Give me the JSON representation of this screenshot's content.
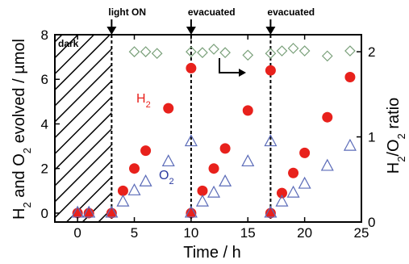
{
  "chart_data": {
    "type": "scatter",
    "xlabel": "Time / h",
    "ylabel_left": "H2 and O2 evolved / µmol",
    "ylabel_right": "H2/O2 ratio",
    "xlim": [
      -2,
      25
    ],
    "ylim_left": [
      -0.4,
      8
    ],
    "ylim_right": [
      0,
      2.2
    ],
    "xticks": [
      0,
      5,
      10,
      15,
      20,
      25
    ],
    "yticks_left": [
      0,
      2,
      4,
      6,
      8
    ],
    "yticks_right": [
      0,
      1,
      2
    ],
    "dark_label": "dark",
    "dark_region": [
      -2,
      3
    ],
    "events": [
      {
        "x": 3,
        "label": "light ON"
      },
      {
        "x": 10,
        "label": "evacuated"
      },
      {
        "x": 17,
        "label": "evacuated"
      }
    ],
    "series": [
      {
        "name": "H2",
        "marker": "filled-circle",
        "color": "#e8211c",
        "axis": "left",
        "points": [
          [
            0,
            0
          ],
          [
            1,
            0
          ],
          [
            3,
            0
          ],
          [
            4,
            1.0
          ],
          [
            5,
            2.0
          ],
          [
            6,
            2.8
          ],
          [
            8,
            4.7
          ],
          [
            10,
            6.5
          ],
          [
            10,
            0
          ],
          [
            11,
            1.0
          ],
          [
            12,
            2.0
          ],
          [
            13,
            2.9
          ],
          [
            15,
            4.6
          ],
          [
            17,
            6.4
          ],
          [
            17,
            0
          ],
          [
            18,
            0.9
          ],
          [
            19,
            1.8
          ],
          [
            20,
            2.7
          ],
          [
            22,
            4.3
          ],
          [
            24,
            6.1
          ]
        ]
      },
      {
        "name": "O2",
        "marker": "open-triangle",
        "color": "#5b6bb8",
        "axis": "left",
        "points": [
          [
            0,
            0
          ],
          [
            1,
            0
          ],
          [
            3,
            0
          ],
          [
            4,
            0.5
          ],
          [
            5,
            1.0
          ],
          [
            6,
            1.4
          ],
          [
            8,
            2.3
          ],
          [
            10,
            3.2
          ],
          [
            10,
            0
          ],
          [
            11,
            0.5
          ],
          [
            12,
            0.9
          ],
          [
            13,
            1.4
          ],
          [
            15,
            2.3
          ],
          [
            17,
            3.2
          ],
          [
            17,
            0
          ],
          [
            18,
            0.5
          ],
          [
            19,
            0.9
          ],
          [
            20,
            1.3
          ],
          [
            22,
            2.1
          ],
          [
            24,
            3.0
          ]
        ]
      },
      {
        "name": "H2/O2 ratio",
        "marker": "open-diamond",
        "color": "#7aa07a",
        "axis": "right",
        "points": [
          [
            5,
            2.0
          ],
          [
            6,
            2.0
          ],
          [
            7,
            1.98
          ],
          [
            10,
            2.0
          ],
          [
            11,
            1.99
          ],
          [
            12,
            2.03
          ],
          [
            13,
            1.99
          ],
          [
            15,
            1.96
          ],
          [
            17,
            1.98
          ],
          [
            18,
            2.01
          ],
          [
            19,
            2.04
          ],
          [
            20,
            2.01
          ],
          [
            22,
            1.95
          ],
          [
            24,
            2.01
          ]
        ]
      }
    ]
  }
}
